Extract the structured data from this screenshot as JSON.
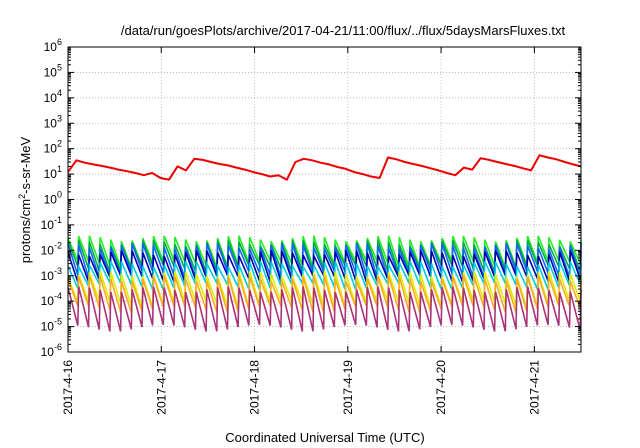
{
  "chart_data": {
    "type": "line",
    "title": "/data/run/goesPlots/archive/2017-04-21/11:00/flux/../flux/5daysMarsFluxes.txt",
    "xlabel": "Coordinated Universal Time (UTC)",
    "ylabel_base": "protons/cm",
    "ylabel_sup": "2",
    "ylabel_rest": "-s-sr-MeV",
    "y_scale": "log",
    "ylim": [
      1e-06,
      1000000.0
    ],
    "y_tick_base": "10",
    "y_tick_exponents": [
      "-6",
      "-5",
      "-4",
      "-3",
      "-2",
      "-1",
      "0",
      "1",
      "2",
      "3",
      "4",
      "5",
      "6"
    ],
    "x_tick_labels": [
      "2017-4-16",
      "2017-4-17",
      "2017-4-18",
      "2017-4-19",
      "2017-4-20",
      "2017-4-21"
    ],
    "xlim": [
      "2017-04-16 00:00",
      "2017-04-21 12:00"
    ],
    "grid": true,
    "legend": "none",
    "series": [
      {
        "color": "#ee0000",
        "x": [
          "2017-04-16 00:00",
          "2017-04-16 02:10",
          "2017-04-16 04:20",
          "2017-04-16 06:30",
          "2017-04-16 08:40",
          "2017-04-16 10:50",
          "2017-04-16 13:00",
          "2017-04-16 15:10",
          "2017-04-16 17:20",
          "2017-04-16 19:30",
          "2017-04-16 21:40",
          "2017-04-16 23:50",
          "2017-04-17 02:00",
          "2017-04-17 04:10",
          "2017-04-17 06:20",
          "2017-04-17 08:30",
          "2017-04-17 10:40",
          "2017-04-17 12:50",
          "2017-04-17 15:00",
          "2017-04-17 17:10",
          "2017-04-17 19:20",
          "2017-04-17 21:30",
          "2017-04-17 23:40",
          "2017-04-18 01:50",
          "2017-04-18 04:00",
          "2017-04-18 06:10",
          "2017-04-18 08:20",
          "2017-04-18 10:30",
          "2017-04-18 12:40",
          "2017-04-18 14:50",
          "2017-04-18 17:00",
          "2017-04-18 19:10",
          "2017-04-18 21:20",
          "2017-04-18 23:30",
          "2017-04-19 01:40",
          "2017-04-19 03:50",
          "2017-04-19 06:00",
          "2017-04-19 08:10",
          "2017-04-19 10:20",
          "2017-04-19 12:30",
          "2017-04-19 14:40",
          "2017-04-19 16:50",
          "2017-04-19 19:00",
          "2017-04-19 21:10",
          "2017-04-19 23:20",
          "2017-04-20 01:30",
          "2017-04-20 03:40",
          "2017-04-20 05:50",
          "2017-04-20 08:00",
          "2017-04-20 10:10",
          "2017-04-20 12:20",
          "2017-04-20 14:30",
          "2017-04-20 16:40",
          "2017-04-20 18:50",
          "2017-04-20 21:00",
          "2017-04-20 23:10",
          "2017-04-21 01:20",
          "2017-04-21 03:30",
          "2017-04-21 05:40",
          "2017-04-21 07:50",
          "2017-04-21 10:00",
          "2017-04-21 12:00"
        ],
        "values": [
          12,
          35,
          28,
          24,
          21,
          18,
          15,
          13,
          11,
          9,
          11,
          7,
          6,
          20,
          14,
          40,
          36,
          30,
          25,
          22,
          18,
          15,
          12,
          10,
          8,
          9,
          6,
          30,
          40,
          35,
          28,
          24,
          19,
          16,
          12,
          10,
          8,
          7,
          45,
          38,
          30,
          25,
          21,
          17,
          14,
          11,
          9,
          18,
          15,
          42,
          36,
          30,
          25,
          21,
          17,
          14,
          55,
          45,
          38,
          30,
          24,
          20
        ]
      },
      {
        "color": "#22ee22",
        "values": [
          0.03,
          0.003
        ]
      },
      {
        "color": "#00aa44",
        "values": [
          0.02,
          0.002
        ]
      },
      {
        "color": "#1166ff",
        "values": [
          0.015,
          0.0012
        ]
      },
      {
        "color": "#0000aa",
        "values": [
          0.008,
          0.0008
        ]
      },
      {
        "color": "#00ccdd",
        "values": [
          0.003,
          0.0004
        ]
      },
      {
        "color": "#ddee00",
        "values": [
          0.0012,
          8e-05
        ]
      },
      {
        "color": "#ffaa22",
        "values": [
          0.0008,
          5e-05
        ]
      },
      {
        "color": "#aa3377",
        "values": [
          0.0003,
          9e-06
        ]
      }
    ]
  }
}
